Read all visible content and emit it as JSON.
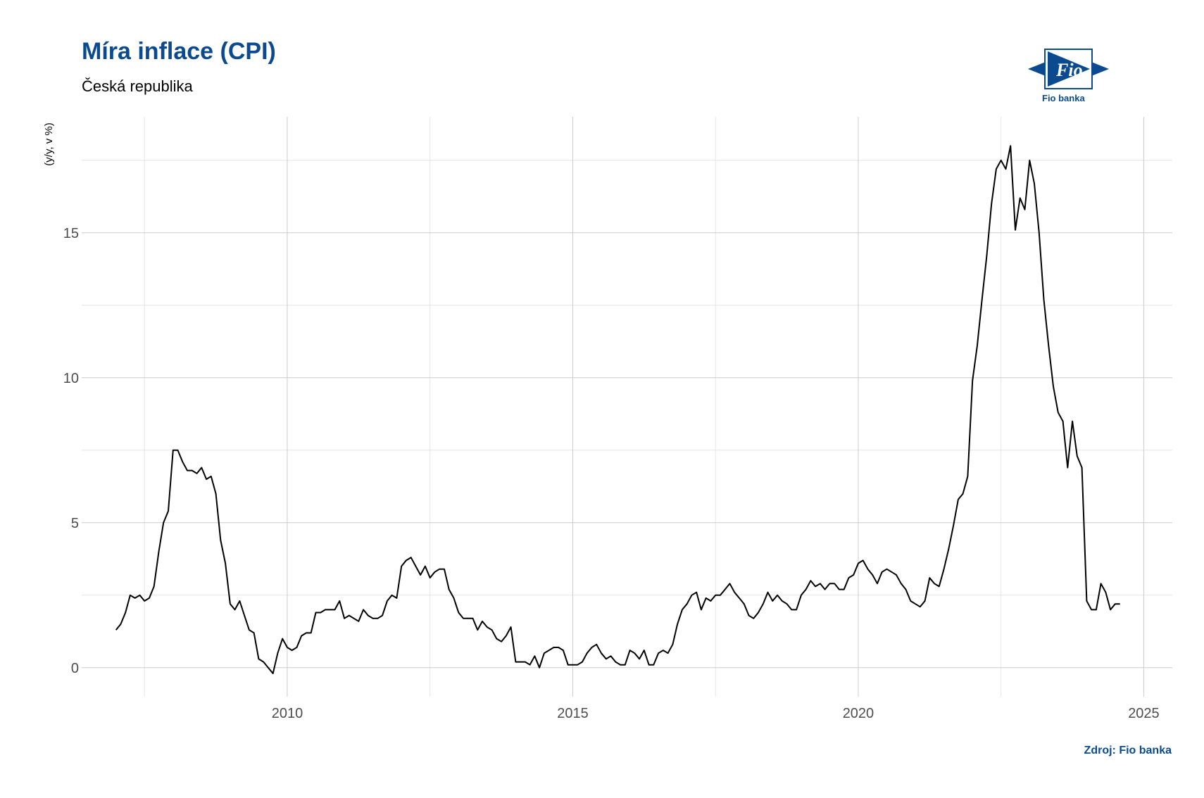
{
  "header": {
    "title": "Míra inflace (CPI)",
    "subtitle": "Česká republika"
  },
  "logo": {
    "brand_text": "Fio banka",
    "mark_text": "Fio",
    "color": "#0b4a8f"
  },
  "footer": {
    "source": "Zdroj: Fio banka"
  },
  "chart_data": {
    "type": "line",
    "title": "Míra inflace (CPI)",
    "subtitle": "Česká republika",
    "xlabel": "",
    "ylabel": "(y/y, v %)",
    "xlim": [
      2006.4,
      2025.5
    ],
    "ylim": [
      -1,
      19
    ],
    "x_ticks": [
      2010,
      2015,
      2020,
      2025
    ],
    "y_ticks": [
      0,
      5,
      10,
      15
    ],
    "grid": true,
    "line_color": "#000000",
    "series": [
      {
        "name": "",
        "start": "2007-01",
        "values": [
          1.3,
          1.5,
          1.9,
          2.5,
          2.4,
          2.5,
          2.3,
          2.4,
          2.8,
          4.0,
          5.0,
          5.4,
          7.5,
          7.5,
          7.1,
          6.8,
          6.8,
          6.7,
          6.9,
          6.5,
          6.6,
          6.0,
          4.4,
          3.6,
          2.2,
          2.0,
          2.3,
          1.8,
          1.3,
          1.2,
          0.3,
          0.2,
          0.0,
          -0.2,
          0.5,
          1.0,
          0.7,
          0.6,
          0.7,
          1.1,
          1.2,
          1.2,
          1.9,
          1.9,
          2.0,
          2.0,
          2.0,
          2.3,
          1.7,
          1.8,
          1.7,
          1.6,
          2.0,
          1.8,
          1.7,
          1.7,
          1.8,
          2.3,
          2.5,
          2.4,
          3.5,
          3.7,
          3.8,
          3.5,
          3.2,
          3.5,
          3.1,
          3.3,
          3.4,
          3.4,
          2.7,
          2.4,
          1.9,
          1.7,
          1.7,
          1.7,
          1.3,
          1.6,
          1.4,
          1.3,
          1.0,
          0.9,
          1.1,
          1.4,
          0.2,
          0.2,
          0.2,
          0.1,
          0.4,
          0.0,
          0.5,
          0.6,
          0.7,
          0.7,
          0.6,
          0.1,
          0.1,
          0.1,
          0.2,
          0.5,
          0.7,
          0.8,
          0.5,
          0.3,
          0.4,
          0.2,
          0.1,
          0.1,
          0.6,
          0.5,
          0.3,
          0.6,
          0.1,
          0.1,
          0.5,
          0.6,
          0.5,
          0.8,
          1.5,
          2.0,
          2.2,
          2.5,
          2.6,
          2.0,
          2.4,
          2.3,
          2.5,
          2.5,
          2.7,
          2.9,
          2.6,
          2.4,
          2.2,
          1.8,
          1.7,
          1.9,
          2.2,
          2.6,
          2.3,
          2.5,
          2.3,
          2.2,
          2.0,
          2.0,
          2.5,
          2.7,
          3.0,
          2.8,
          2.9,
          2.7,
          2.9,
          2.9,
          2.7,
          2.7,
          3.1,
          3.2,
          3.6,
          3.7,
          3.4,
          3.2,
          2.9,
          3.3,
          3.4,
          3.3,
          3.2,
          2.9,
          2.7,
          2.3,
          2.2,
          2.1,
          2.3,
          3.1,
          2.9,
          2.8,
          3.4,
          4.1,
          4.9,
          5.8,
          6.0,
          6.6,
          9.9,
          11.1,
          12.7,
          14.2,
          16.0,
          17.2,
          17.5,
          17.2,
          18.0,
          15.1,
          16.2,
          15.8,
          17.5,
          16.7,
          15.0,
          12.7,
          11.1,
          9.7,
          8.8,
          8.5,
          6.9,
          8.5,
          7.3,
          6.9,
          2.3,
          2.0,
          2.0,
          2.9,
          2.6,
          2.0,
          2.2,
          2.2
        ]
      }
    ]
  }
}
